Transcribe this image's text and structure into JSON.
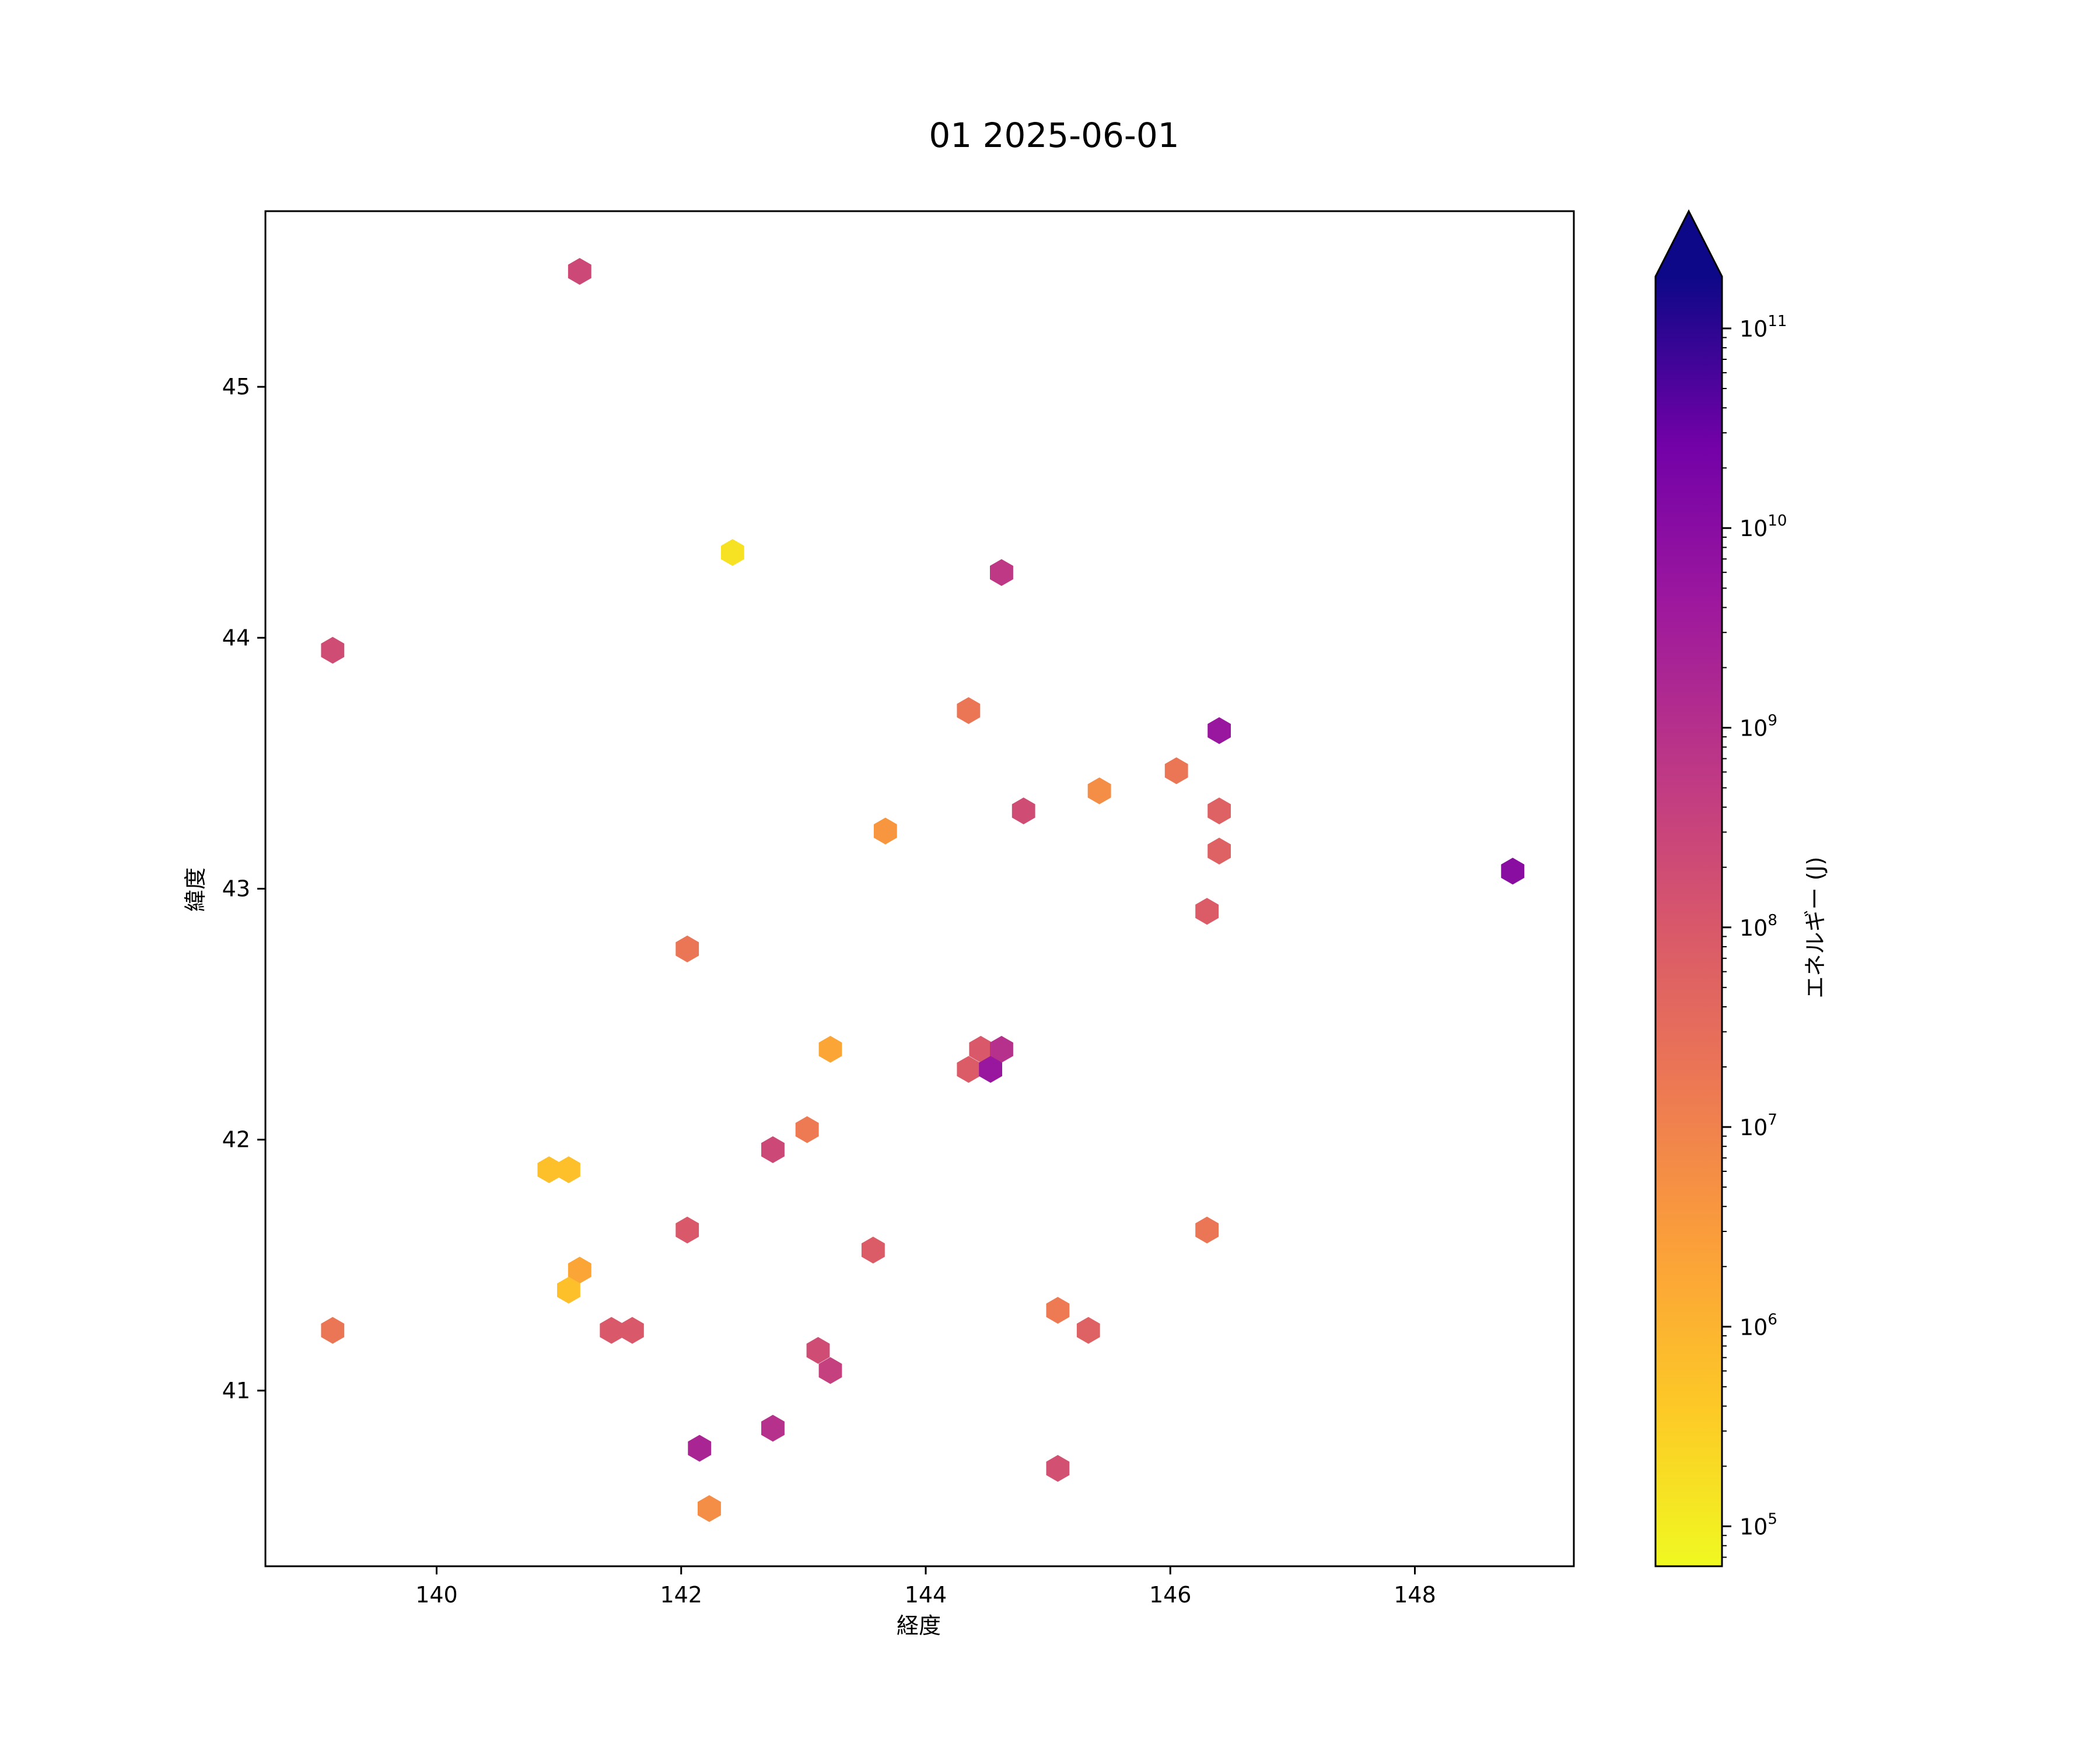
{
  "chart_data": {
    "type": "hexbin",
    "title": "01 2025-06-01",
    "xlabel": "経度",
    "ylabel": "緯度",
    "xlim": [
      138.6,
      149.3
    ],
    "ylim": [
      40.3,
      45.7
    ],
    "xticks": [
      140,
      142,
      144,
      146,
      148
    ],
    "yticks": [
      41,
      42,
      43,
      44,
      45
    ],
    "colorbar": {
      "label": "エネルギー (J)",
      "scale": "log",
      "colormap": "plasma_r",
      "range_exponents": [
        4.8,
        11.26
      ],
      "extend": "max",
      "extend_color": "#0d0887",
      "tick_labels": [
        {
          "base": "10",
          "exp": "5"
        },
        {
          "base": "10",
          "exp": "6"
        },
        {
          "base": "10",
          "exp": "7"
        },
        {
          "base": "10",
          "exp": "8"
        },
        {
          "base": "10",
          "exp": "9"
        },
        {
          "base": "10",
          "exp": "10"
        },
        {
          "base": "10",
          "exp": "11"
        }
      ]
    },
    "points": [
      {
        "lon": 141.17,
        "lat": 45.46,
        "log10_energy": 8.4
      },
      {
        "lon": 142.42,
        "lat": 44.34,
        "log10_energy": 5.2
      },
      {
        "lon": 144.62,
        "lat": 44.26,
        "log10_energy": 8.8
      },
      {
        "lon": 139.15,
        "lat": 43.95,
        "log10_energy": 8.3
      },
      {
        "lon": 144.35,
        "lat": 43.71,
        "log10_energy": 7.3
      },
      {
        "lon": 146.4,
        "lat": 43.63,
        "log10_energy": 9.7
      },
      {
        "lon": 146.05,
        "lat": 43.47,
        "log10_energy": 7.3
      },
      {
        "lon": 145.42,
        "lat": 43.39,
        "log10_energy": 6.8
      },
      {
        "lon": 144.8,
        "lat": 43.31,
        "log10_energy": 8.3
      },
      {
        "lon": 146.4,
        "lat": 43.31,
        "log10_energy": 7.8
      },
      {
        "lon": 143.67,
        "lat": 43.23,
        "log10_energy": 6.6
      },
      {
        "lon": 146.4,
        "lat": 43.15,
        "log10_energy": 7.8
      },
      {
        "lon": 148.8,
        "lat": 43.07,
        "log10_energy": 10.0
      },
      {
        "lon": 146.3,
        "lat": 42.91,
        "log10_energy": 7.9
      },
      {
        "lon": 142.05,
        "lat": 42.76,
        "log10_energy": 7.3
      },
      {
        "lon": 143.22,
        "lat": 42.36,
        "log10_energy": 6.3
      },
      {
        "lon": 144.45,
        "lat": 42.36,
        "log10_energy": 8.0
      },
      {
        "lon": 144.62,
        "lat": 42.36,
        "log10_energy": 9.0
      },
      {
        "lon": 144.35,
        "lat": 42.28,
        "log10_energy": 7.9
      },
      {
        "lon": 144.53,
        "lat": 42.28,
        "log10_energy": 9.7
      },
      {
        "lon": 143.03,
        "lat": 42.04,
        "log10_energy": 7.2
      },
      {
        "lon": 142.75,
        "lat": 41.96,
        "log10_energy": 8.4
      },
      {
        "lon": 140.92,
        "lat": 41.88,
        "log10_energy": 5.8
      },
      {
        "lon": 141.08,
        "lat": 41.88,
        "log10_energy": 5.8
      },
      {
        "lon": 142.05,
        "lat": 41.64,
        "log10_energy": 8.0
      },
      {
        "lon": 146.3,
        "lat": 41.64,
        "log10_energy": 7.3
      },
      {
        "lon": 143.57,
        "lat": 41.56,
        "log10_energy": 7.9
      },
      {
        "lon": 141.17,
        "lat": 41.48,
        "log10_energy": 6.3
      },
      {
        "lon": 141.08,
        "lat": 41.4,
        "log10_energy": 5.8
      },
      {
        "lon": 145.08,
        "lat": 41.32,
        "log10_energy": 7.2
      },
      {
        "lon": 139.15,
        "lat": 41.24,
        "log10_energy": 7.3
      },
      {
        "lon": 141.43,
        "lat": 41.24,
        "log10_energy": 8.0
      },
      {
        "lon": 141.6,
        "lat": 41.24,
        "log10_energy": 8.0
      },
      {
        "lon": 145.33,
        "lat": 41.24,
        "log10_energy": 7.8
      },
      {
        "lon": 143.12,
        "lat": 41.16,
        "log10_energy": 8.3
      },
      {
        "lon": 143.22,
        "lat": 41.08,
        "log10_energy": 8.6
      },
      {
        "lon": 142.75,
        "lat": 40.85,
        "log10_energy": 9.0
      },
      {
        "lon": 142.15,
        "lat": 40.77,
        "log10_energy": 9.3
      },
      {
        "lon": 145.08,
        "lat": 40.69,
        "log10_energy": 8.2
      },
      {
        "lon": 142.23,
        "lat": 40.53,
        "log10_energy": 6.8
      }
    ]
  }
}
